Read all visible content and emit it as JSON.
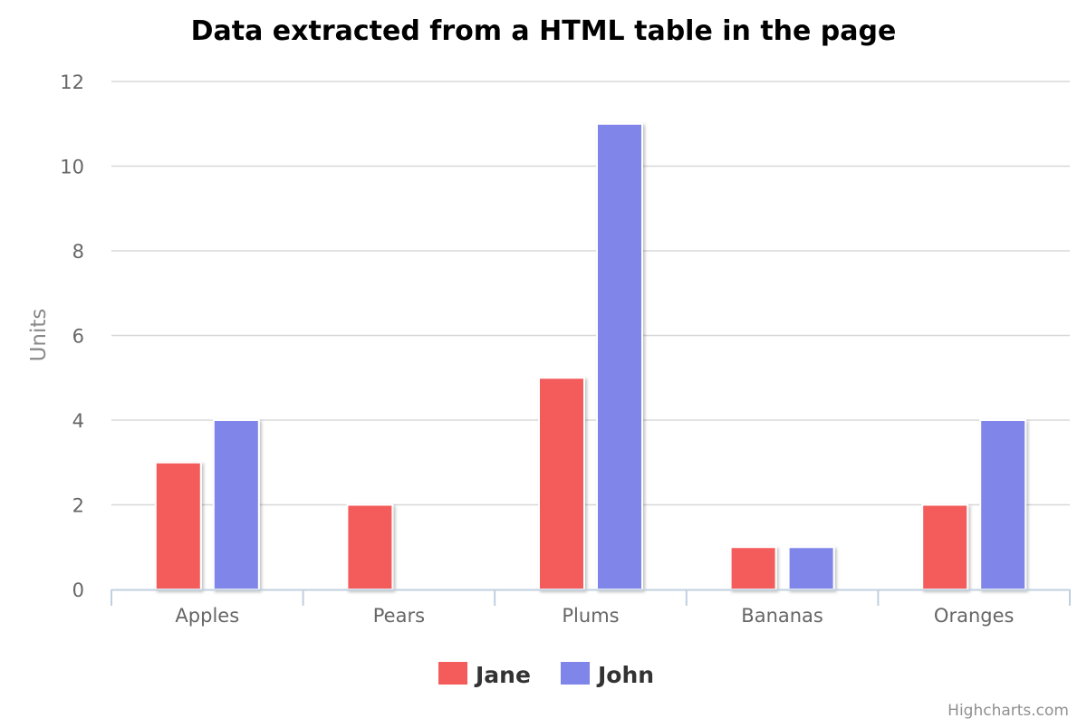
{
  "chart_data": {
    "type": "bar",
    "title": "Data extracted from a HTML table in the page",
    "xlabel": "",
    "ylabel": "Units",
    "categories": [
      "Apples",
      "Pears",
      "Plums",
      "Bananas",
      "Oranges"
    ],
    "series": [
      {
        "name": "Jane",
        "color": "#f45b5b",
        "values": [
          3,
          2,
          5,
          1,
          2
        ]
      },
      {
        "name": "John",
        "color": "#8085e9",
        "values": [
          4,
          0,
          11,
          1,
          4
        ]
      }
    ],
    "ylim": [
      0,
      12
    ],
    "yticks": [
      "0",
      "2",
      "4",
      "6",
      "8",
      "10",
      "12"
    ],
    "grid": true,
    "legend": "bottom-center",
    "credits": "Highcharts.com"
  }
}
